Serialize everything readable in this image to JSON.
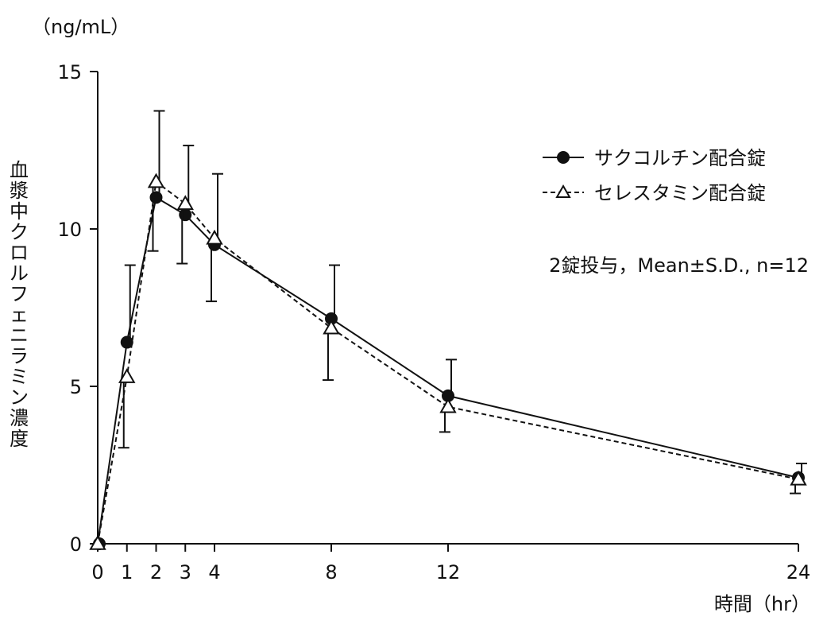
{
  "chart_data": {
    "type": "line",
    "ylabel_unit": "（ng/mL）",
    "ylabel": "血漿中クロルフェニラミン濃度",
    "xlabel": "時間（hr）",
    "xlim": [
      0,
      24
    ],
    "ylim": [
      0,
      15
    ],
    "x_ticks": [
      0,
      1,
      2,
      3,
      4,
      8,
      12,
      24
    ],
    "y_ticks": [
      0,
      5,
      10,
      15
    ],
    "legend_position": "top-right",
    "note": "2錠投与，Mean±S.D., n=12",
    "series": [
      {
        "name": "サクコルチン配合錠",
        "marker": "filled-circle",
        "line": "solid",
        "x": [
          0,
          1,
          2,
          3,
          4,
          8,
          12,
          24
        ],
        "y": [
          0,
          6.4,
          11.0,
          10.45,
          9.5,
          7.15,
          4.7,
          2.1
        ],
        "sd": [
          0,
          2.45,
          2.75,
          2.2,
          2.25,
          1.7,
          1.15,
          0.45
        ]
      },
      {
        "name": "セレスタミン配合錠",
        "marker": "open-triangle",
        "line": "dashed",
        "x": [
          0,
          1,
          2,
          3,
          4,
          8,
          12,
          24
        ],
        "y": [
          0,
          5.3,
          11.5,
          10.8,
          9.7,
          6.85,
          4.35,
          2.05
        ],
        "sd": [
          0,
          2.25,
          2.2,
          1.9,
          2.0,
          1.65,
          0.8,
          0.45
        ]
      }
    ]
  }
}
